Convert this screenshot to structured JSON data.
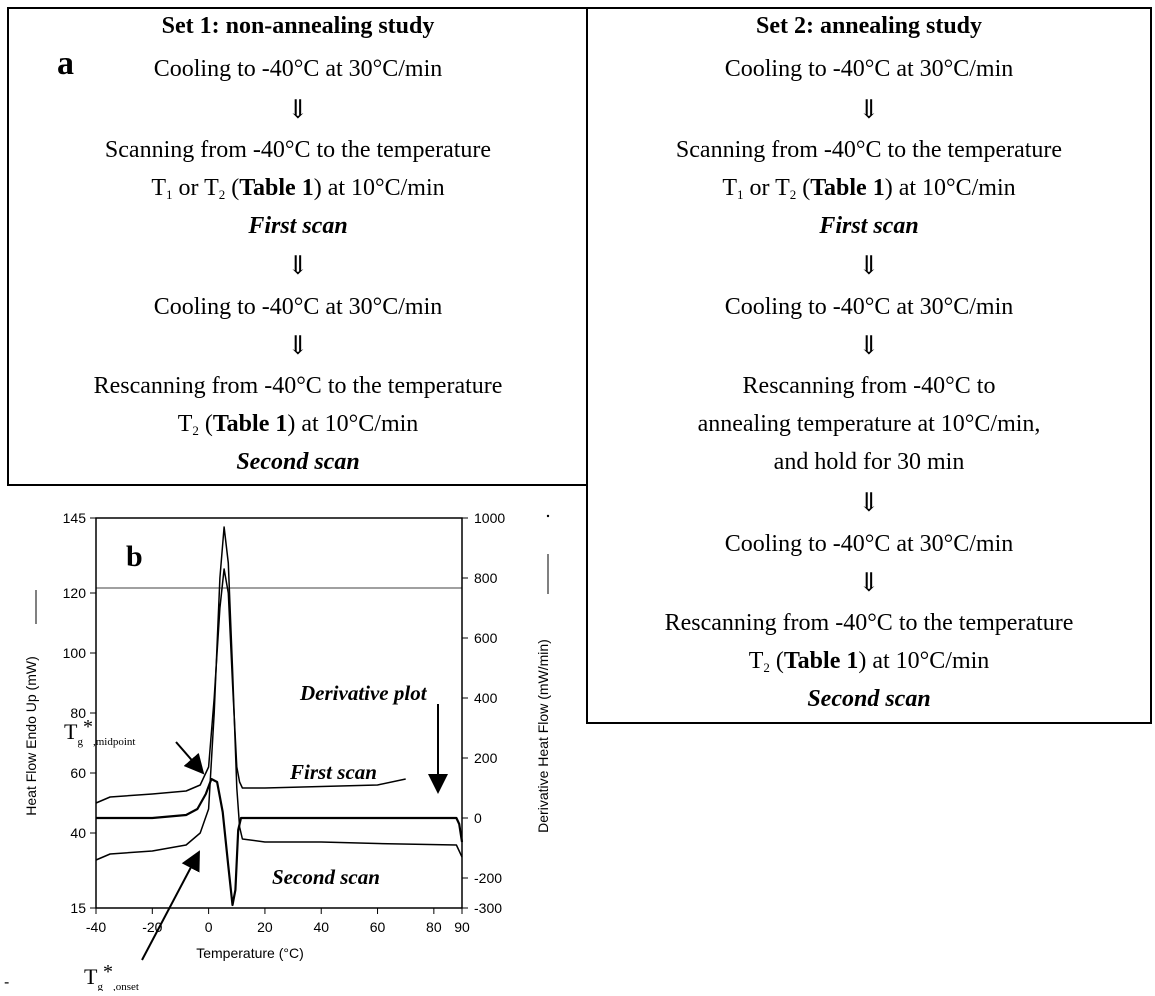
{
  "set1": {
    "title": "Set 1: non-annealing study",
    "panel": "a",
    "arrow": "⇓",
    "s1": "Cooling to -40°C at 30°C/min",
    "s2a": "Scanning from -40°C to the temperature",
    "s2b_T1": "T",
    "s2b_sub1": "1",
    "s2b_or": " or T",
    "s2b_sub2": "2",
    "s2b_open": " (",
    "table_ref": "Table 1",
    "s2b_close": ") at 10°C/min",
    "first_scan": "First scan",
    "s3": "Cooling to -40°C at 30°C/min",
    "s4a": "Rescanning from -40°C to the temperature",
    "s4b_T": "T",
    "s4b_sub": "2",
    "s4b_open": " (",
    "s4b_close": ") at 10°C/min",
    "second_scan": "Second scan"
  },
  "set2": {
    "title": "Set 2: annealing study",
    "arrow": "⇓",
    "s1": "Cooling to -40°C at 30°C/min",
    "s2a": "Scanning from -40°C to the temperature",
    "s2b_T1": "T",
    "s2b_sub1": "1",
    "s2b_or": " or T",
    "s2b_sub2": "2",
    "s2b_open": " (",
    "table_ref": "Table 1",
    "s2b_close": ") at 10°C/min",
    "first_scan": "First scan",
    "s3": "Cooling to -40°C at 30°C/min",
    "s4a": "Rescanning from -40°C to",
    "s4b": "annealing temperature at 10°C/min,",
    "s4c": "and hold for 30 min",
    "s5": "Cooling to -40°C at 30°C/min",
    "s6a": "Rescanning from -40°C to the temperature",
    "s6b_T": "T",
    "s6b_sub": "2",
    "s6b_open": " (",
    "s6b_close": ") at 10°C/min",
    "second_scan": "Second scan"
  },
  "chart_data": {
    "type": "line",
    "panel": "b",
    "xlabel": "Temperature (°C)",
    "ylabel_left": "Heat Flow Endo Up (mW)",
    "ylabel_right": "Derivative Heat Flow (mW/min)",
    "x_ticks": [
      "-40",
      "-20",
      "0",
      "20",
      "40",
      "60",
      "80",
      "90"
    ],
    "x_tick_values": [
      -40,
      -20,
      0,
      20,
      40,
      60,
      80,
      90
    ],
    "y_left_ticks": [
      "145",
      "120",
      "100",
      "80",
      "60",
      "40",
      "15"
    ],
    "y_right_ticks": [
      "1000",
      "800",
      "600",
      "400",
      "200",
      "0",
      "-200",
      "-300"
    ],
    "annotations": {
      "derivative": "Derivative plot",
      "first_scan": "First scan",
      "second_scan": "Second scan",
      "tg_mid_main": "T",
      "tg_mid_sub": "g",
      "tg_mid_star": "*",
      "tg_mid_suffix": ",midpoint",
      "tg_on_main": "T",
      "tg_on_sub": "g",
      "tg_on_star": "*",
      "tg_on_suffix": ",onset"
    },
    "series": [
      {
        "values_x": [
          -40,
          -35,
          -20,
          -8,
          -3,
          0,
          2,
          4,
          5.5,
          7,
          8.5,
          10,
          11,
          12,
          20,
          40,
          60,
          70
        ],
        "values_y": [
          50,
          52,
          53,
          54,
          56,
          62,
          85,
          115,
          128,
          120,
          90,
          62,
          57,
          55,
          55,
          55.5,
          56,
          58
        ]
      },
      {
        "values_x": [
          -40,
          -35,
          -20,
          -8,
          -3,
          0,
          2,
          4,
          5.5,
          7,
          8.5,
          10,
          11,
          12,
          20,
          40,
          60,
          88,
          90
        ],
        "values_y": [
          31,
          33,
          34,
          36,
          40,
          48,
          80,
          125,
          142,
          130,
          95,
          55,
          42,
          38,
          37,
          37,
          36.5,
          36,
          32
        ]
      },
      {
        "values_x": [
          -40,
          -35,
          -20,
          -8,
          -4,
          -1,
          1,
          3,
          5,
          7,
          8.5,
          9.5,
          10.5,
          11.5,
          13,
          20,
          40,
          60,
          80,
          88,
          89,
          90
        ],
        "values_y": [
          0,
          0,
          0,
          10,
          30,
          80,
          130,
          120,
          20,
          -160,
          -290,
          -240,
          -40,
          0,
          0,
          0,
          0,
          0,
          0,
          0,
          -20,
          -80
        ]
      }
    ],
    "xlim": [
      -40,
      90
    ],
    "ylim_left": [
      15,
      145
    ],
    "ylim_right": [
      -300,
      1000
    ]
  }
}
